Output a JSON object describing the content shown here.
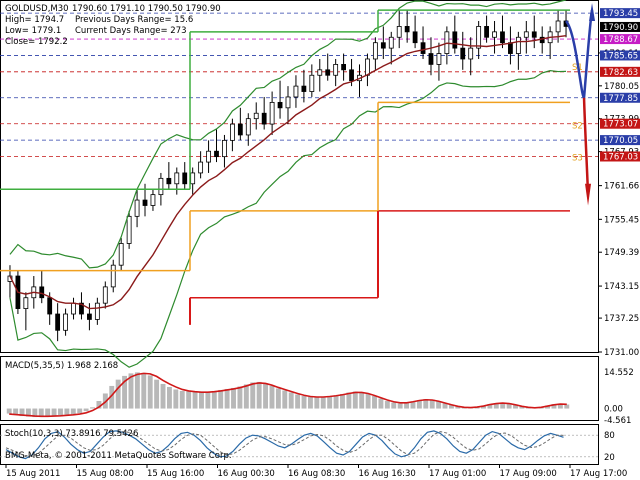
{
  "header": {
    "symbol_tf": "GOLDUSD,M30",
    "ohlc": "1790.60 1791.10 1790.50 1790.90",
    "high": "High= 1794.7",
    "low": "Low= 1779.1",
    "close": "Close= 1792.2",
    "prev_range": "Previous Days Range= 15.6",
    "curr_range": "Current Days Range= 273"
  },
  "price_axis": {
    "ticks": [
      "1786.11",
      "1780.05",
      "1773.99",
      "1767.93",
      "1761.66",
      "1755.45",
      "1749.39",
      "1743.15",
      "1737.25",
      "1731.00"
    ],
    "ymin": 1731.0,
    "ymax": 1795.5
  },
  "price_tags": [
    {
      "label": "1793.45",
      "color": "#2a3ea8",
      "text_color": "#ffffff",
      "price": 1793.45
    },
    {
      "label": "1790.90",
      "color": "#000000",
      "text_color": "#ffffff",
      "price": 1790.9
    },
    {
      "label": "1788.67",
      "color": "#c61ec6",
      "text_color": "#ffffff",
      "price": 1788.67
    },
    {
      "label": "1785.65",
      "color": "#2a3ea8",
      "text_color": "#ffffff",
      "price": 1785.65
    },
    {
      "label": "1782.63",
      "color": "#c31515",
      "text_color": "#ffffff",
      "price": 1782.63
    },
    {
      "label": "1777.85",
      "color": "#2a3ea8",
      "text_color": "#ffffff",
      "price": 1777.85
    },
    {
      "label": "1773.07",
      "color": "#c31515",
      "text_color": "#ffffff",
      "price": 1773.07
    },
    {
      "label": "1770.05",
      "color": "#2a3ea8",
      "text_color": "#ffffff",
      "price": 1770.05
    },
    {
      "label": "1767.03",
      "color": "#c31515",
      "text_color": "#ffffff",
      "price": 1767.03
    }
  ],
  "level_labels": [
    {
      "label": "S1",
      "price": 1783.0,
      "color": "#e2a020"
    },
    {
      "label": "S2",
      "price": 1772.2,
      "color": "#e2a020"
    },
    {
      "label": "S3",
      "price": 1766.3,
      "color": "#e2a020"
    }
  ],
  "macd": {
    "label": "MACD(5,35,5) 1.968 2.168",
    "ticks": [
      "14.552",
      "0.00",
      "-4.561"
    ],
    "values": [
      -2,
      -2.5,
      -3,
      -3.2,
      -3.4,
      -3.3,
      -3.0,
      -2.8,
      -2.6,
      -2.4,
      -2.2,
      -1.8,
      -1.0,
      0.5,
      3,
      6,
      9,
      11.5,
      13,
      14,
      14.4,
      14.2,
      13.2,
      11.5,
      9.8,
      8.6,
      7.6,
      7.0,
      6.8,
      6.6,
      6.4,
      6.6,
      7.0,
      7.4,
      7.8,
      8.2,
      8.8,
      9.6,
      10.4,
      10.6,
      10.0,
      9.0,
      8.0,
      7.2,
      6.4,
      5.6,
      5.0,
      4.6,
      4.4,
      4.6,
      4.8,
      5.2,
      5.8,
      6.4,
      6.8,
      6.6,
      6.0,
      5.0,
      4.0,
      3.0,
      2.4,
      2.0,
      2.2,
      2.8,
      3.4,
      3.8,
      3.6,
      3.0,
      2.2,
      1.4,
      0.8,
      0.4,
      0.2,
      0.6,
      1.2,
      1.8,
      2.2,
      2.4,
      2.2,
      1.6,
      1.0,
      0.4,
      0.0,
      0.4,
      1.2,
      1.8,
      2.0,
      1.6
    ],
    "signal": [
      -2.2,
      -2.4,
      -2.6,
      -2.8,
      -3.0,
      -3.1,
      -3.1,
      -3.0,
      -2.9,
      -2.7,
      -2.5,
      -2.2,
      -1.7,
      -0.8,
      0.6,
      2.6,
      5.2,
      8.2,
      10.8,
      12.6,
      13.6,
      14.0,
      13.8,
      12.8,
      11.2,
      9.8,
      8.6,
      7.6,
      7.0,
      6.7,
      6.5,
      6.5,
      6.7,
      7.0,
      7.4,
      7.8,
      8.3,
      9.0,
      9.8,
      10.2,
      10.0,
      9.3,
      8.4,
      7.6,
      6.8,
      6.0,
      5.3,
      4.8,
      4.6,
      4.6,
      4.8,
      5.1,
      5.5,
      6.0,
      6.4,
      6.4,
      6.0,
      5.2,
      4.3,
      3.4,
      2.7,
      2.3,
      2.3,
      2.7,
      3.2,
      3.5,
      3.4,
      2.9,
      2.2,
      1.5,
      0.9,
      0.5,
      0.4,
      0.6,
      1.0,
      1.6,
      2.0,
      2.2,
      2.0,
      1.5,
      0.9,
      0.5,
      0.3,
      0.5,
      1.0,
      1.5,
      1.8,
      1.7
    ],
    "min": -4.561,
    "max": 14.552
  },
  "stoch": {
    "label": "Stoch(10,3,3) 73.8916 79.5426",
    "ticks": [
      "80",
      "20"
    ],
    "k": [
      40,
      30,
      20,
      15,
      25,
      45,
      70,
      85,
      90,
      75,
      55,
      40,
      30,
      35,
      55,
      75,
      90,
      92,
      88,
      80,
      70,
      55,
      40,
      30,
      35,
      50,
      70,
      85,
      88,
      80,
      65,
      45,
      30,
      20,
      22,
      35,
      55,
      72,
      80,
      78,
      70,
      60,
      50,
      45,
      55,
      68,
      80,
      85,
      78,
      62,
      45,
      30,
      25,
      35,
      55,
      75,
      85,
      80,
      65,
      45,
      28,
      20,
      25,
      45,
      70,
      88,
      92,
      85,
      70,
      50,
      35,
      30,
      40,
      60,
      80,
      90,
      85,
      70,
      55,
      45,
      40,
      50,
      65,
      78,
      85,
      80,
      74
    ],
    "d": [
      45,
      38,
      30,
      22,
      22,
      30,
      45,
      62,
      78,
      80,
      72,
      58,
      45,
      38,
      40,
      52,
      70,
      84,
      90,
      88,
      80,
      68,
      55,
      42,
      36,
      40,
      52,
      68,
      80,
      84,
      80,
      66,
      50,
      34,
      26,
      28,
      38,
      52,
      66,
      75,
      76,
      70,
      62,
      54,
      52,
      58,
      68,
      78,
      82,
      78,
      66,
      50,
      38,
      32,
      38,
      52,
      68,
      80,
      80,
      68,
      52,
      36,
      26,
      30,
      44,
      64,
      82,
      90,
      86,
      74,
      58,
      44,
      38,
      42,
      56,
      72,
      84,
      86,
      78,
      64,
      52,
      46,
      48,
      58,
      70,
      80,
      79.5
    ]
  },
  "time_axis": {
    "labels": [
      "15 Aug 2011",
      "15 Aug 08:00",
      "15 Aug 16:00",
      "16 Aug 00:30",
      "16 Aug 08:30",
      "16 Aug 16:30",
      "17 Aug 01:00",
      "17 Aug 09:00",
      "17 Aug 17:00"
    ]
  },
  "copyright": "BMG-Meta, © 2001-2011 MetaQuotes Software Corp.",
  "colors": {
    "bollinger": "#2e8b2e",
    "ma": "#8b1a1a",
    "pivot_green": "#3fae3f",
    "pivot_red": "#d81818",
    "pivot_orange": "#f0a020",
    "projection_blue": "#2a3ea8",
    "projection_red": "#c31515"
  },
  "candles": [
    [
      1744,
      1747,
      1741,
      1745
    ],
    [
      1745,
      1746,
      1738,
      1739
    ],
    [
      1739,
      1742,
      1735,
      1741
    ],
    [
      1741,
      1745,
      1739,
      1743
    ],
    [
      1743,
      1746,
      1740,
      1741
    ],
    [
      1741,
      1742,
      1736,
      1738
    ],
    [
      1738,
      1740,
      1733,
      1735
    ],
    [
      1735,
      1739,
      1734,
      1738
    ],
    [
      1738,
      1741,
      1737,
      1740
    ],
    [
      1740,
      1742,
      1737,
      1738
    ],
    [
      1738,
      1740,
      1735,
      1737
    ],
    [
      1737,
      1741,
      1736,
      1740
    ],
    [
      1740,
      1744,
      1739,
      1743
    ],
    [
      1743,
      1748,
      1742,
      1747
    ],
    [
      1747,
      1752,
      1746,
      1751
    ],
    [
      1751,
      1757,
      1750,
      1756
    ],
    [
      1756,
      1761,
      1754,
      1759
    ],
    [
      1759,
      1762,
      1756,
      1758
    ],
    [
      1758,
      1761,
      1757,
      1760
    ],
    [
      1760,
      1764,
      1758,
      1763
    ],
    [
      1763,
      1766,
      1761,
      1762
    ],
    [
      1762,
      1765,
      1760,
      1764
    ],
    [
      1764,
      1766,
      1761,
      1762
    ],
    [
      1762,
      1765,
      1760,
      1764
    ],
    [
      1764,
      1768,
      1763,
      1766
    ],
    [
      1766,
      1770,
      1764,
      1768
    ],
    [
      1768,
      1772,
      1766,
      1767
    ],
    [
      1767,
      1771,
      1765,
      1770
    ],
    [
      1770,
      1774,
      1768,
      1773
    ],
    [
      1773,
      1776,
      1770,
      1771
    ],
    [
      1771,
      1775,
      1769,
      1774
    ],
    [
      1774,
      1777,
      1772,
      1775
    ],
    [
      1775,
      1778,
      1772,
      1773
    ],
    [
      1773,
      1779,
      1771,
      1777
    ],
    [
      1777,
      1781,
      1774,
      1776
    ],
    [
      1776,
      1780,
      1773,
      1778
    ],
    [
      1778,
      1782,
      1776,
      1780
    ],
    [
      1780,
      1783,
      1777,
      1779
    ],
    [
      1779,
      1784,
      1778,
      1782
    ],
    [
      1782,
      1785,
      1779,
      1783
    ],
    [
      1783,
      1786,
      1781,
      1782
    ],
    [
      1782,
      1785,
      1780,
      1784
    ],
    [
      1784,
      1786,
      1781,
      1783
    ],
    [
      1783,
      1785,
      1780,
      1781
    ],
    [
      1781,
      1784,
      1778,
      1782
    ],
    [
      1782,
      1786,
      1780,
      1785
    ],
    [
      1785,
      1789,
      1783,
      1788
    ],
    [
      1788,
      1791,
      1785,
      1787
    ],
    [
      1787,
      1790,
      1784,
      1789
    ],
    [
      1789,
      1794,
      1787,
      1791
    ],
    [
      1791,
      1794,
      1788,
      1790
    ],
    [
      1790,
      1793,
      1787,
      1788
    ],
    [
      1788,
      1791,
      1785,
      1786
    ],
    [
      1786,
      1789,
      1782,
      1784
    ],
    [
      1784,
      1788,
      1781,
      1786
    ],
    [
      1786,
      1791,
      1784,
      1790
    ],
    [
      1790,
      1793,
      1786,
      1787
    ],
    [
      1787,
      1790,
      1783,
      1785
    ],
    [
      1785,
      1789,
      1782,
      1787
    ],
    [
      1787,
      1792,
      1785,
      1791
    ],
    [
      1791,
      1793,
      1788,
      1789
    ],
    [
      1789,
      1792,
      1786,
      1790
    ],
    [
      1790,
      1793,
      1787,
      1788
    ],
    [
      1788,
      1791,
      1784,
      1786
    ],
    [
      1786,
      1790,
      1783,
      1789
    ],
    [
      1789,
      1792,
      1786,
      1790
    ],
    [
      1790,
      1793,
      1787,
      1789
    ],
    [
      1789,
      1791,
      1786,
      1788
    ],
    [
      1788,
      1791,
      1785,
      1790
    ],
    [
      1790,
      1794,
      1788,
      1792
    ],
    [
      1792,
      1794,
      1789,
      1791
    ]
  ]
}
